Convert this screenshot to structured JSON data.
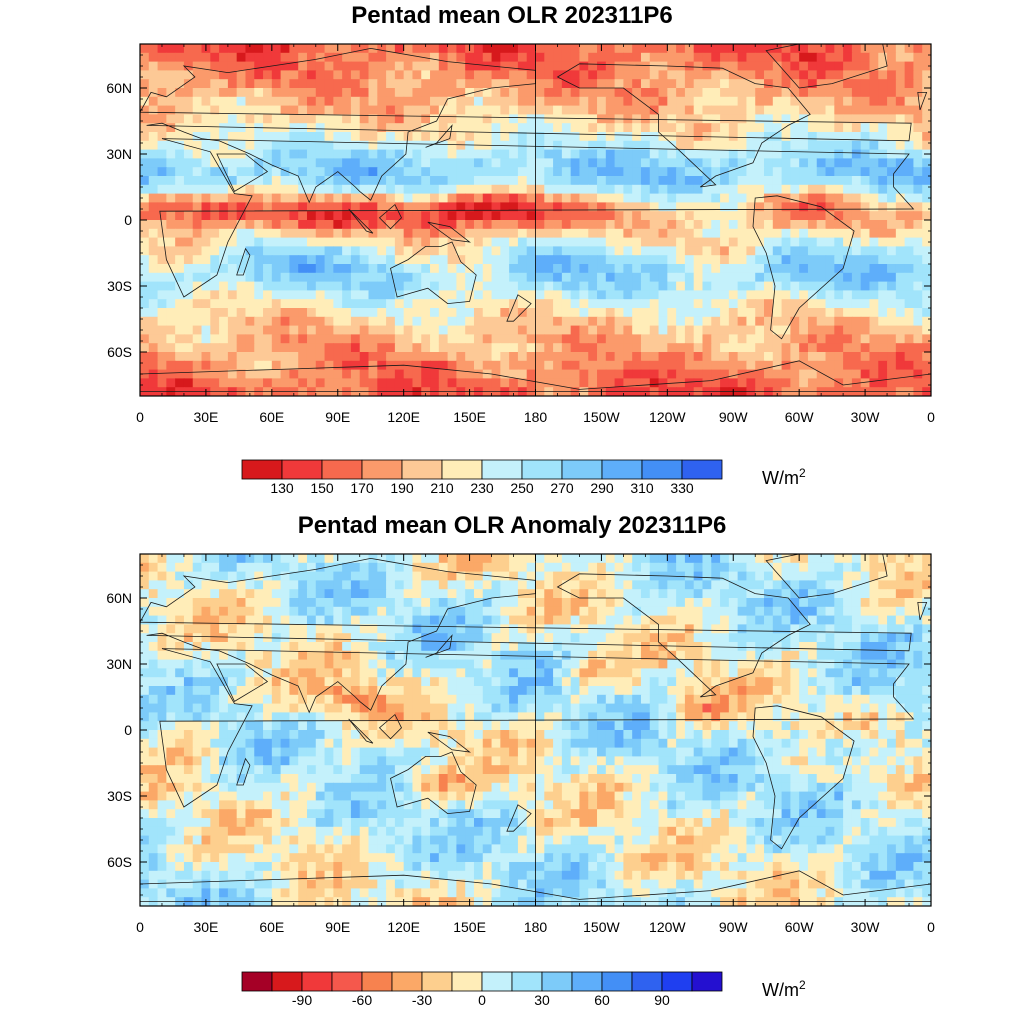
{
  "panels": [
    {
      "title": "Pentad mean OLR 202311P6",
      "lat_labels": [
        "60N",
        "30N",
        "0",
        "30S",
        "60S"
      ],
      "lon_labels": [
        "0",
        "30E",
        "60E",
        "90E",
        "120E",
        "150E",
        "180",
        "150W",
        "120W",
        "90W",
        "60W",
        "30W",
        "0"
      ],
      "colorbar": {
        "colors": [
          "#d7191c",
          "#f0393a",
          "#f7694e",
          "#fb9a6b",
          "#fdc996",
          "#ffedb8",
          "#c4f1fb",
          "#a1e4fb",
          "#7dcbf9",
          "#5eaefa",
          "#438ff6",
          "#2f62f0"
        ],
        "labels": [
          "130",
          "150",
          "170",
          "190",
          "210",
          "230",
          "250",
          "270",
          "290",
          "310",
          "330"
        ]
      },
      "unit_base": "W/m",
      "unit_exp": "2"
    },
    {
      "title": "Pentad mean OLR Anomaly 202311P6",
      "lat_labels": [
        "60N",
        "30N",
        "0",
        "30S",
        "60S"
      ],
      "lon_labels": [
        "0",
        "30E",
        "60E",
        "90E",
        "120E",
        "150E",
        "180",
        "150W",
        "120W",
        "90W",
        "60W",
        "30W",
        "0"
      ],
      "colorbar": {
        "colors": [
          "#a50026",
          "#d7191c",
          "#f0393a",
          "#f5584c",
          "#f7824f",
          "#fba867",
          "#fdcf8e",
          "#ffedb8",
          "#c4f1fb",
          "#a1e4fb",
          "#7dcbf9",
          "#5eaefa",
          "#438ff6",
          "#2f62f0",
          "#1f3ff0",
          "#2410d0"
        ],
        "labels": [
          "-90",
          "-60",
          "-30",
          "0",
          "30",
          "60",
          "90"
        ]
      },
      "unit_base": "W/m",
      "unit_exp": "2"
    }
  ]
}
